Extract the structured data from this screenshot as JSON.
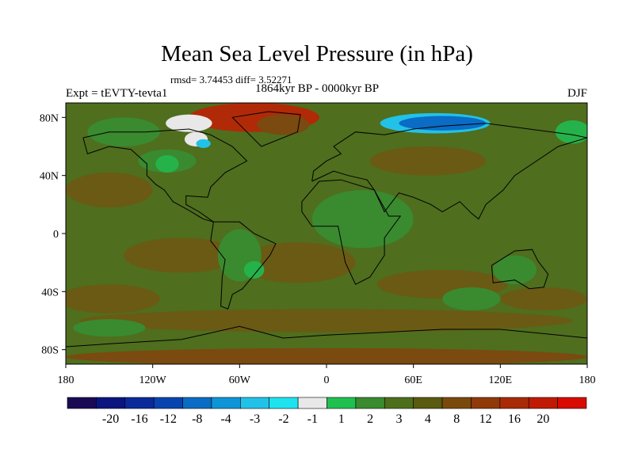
{
  "title": "Mean Sea Level Pressure (in hPa)",
  "stats": "rmsd= 3.74453 diff= 3.52271",
  "period": "1864kyr BP - 0000kyr BP",
  "experiment": "Expt = tEVTY-tevta1",
  "season": "DJF",
  "axes": {
    "y_ticks": [
      {
        "lat": 80,
        "label": "80N"
      },
      {
        "lat": 40,
        "label": "40N"
      },
      {
        "lat": 0,
        "label": "0"
      },
      {
        "lat": -40,
        "label": "40S"
      },
      {
        "lat": -80,
        "label": "80S"
      }
    ],
    "x_ticks": [
      {
        "lon": -180,
        "label": "180"
      },
      {
        "lon": -120,
        "label": "120W"
      },
      {
        "lon": -60,
        "label": "60W"
      },
      {
        "lon": 0,
        "label": "0"
      },
      {
        "lon": 60,
        "label": "60E"
      },
      {
        "lon": 120,
        "label": "120E"
      },
      {
        "lon": 180,
        "label": "180"
      }
    ],
    "lon_range": [
      -180,
      180
    ],
    "lat_range": [
      -90,
      90
    ]
  },
  "colorbar": {
    "colors": [
      "#1a0a55",
      "#0b1580",
      "#0a2a9c",
      "#0844b0",
      "#0a6cc4",
      "#0d95d8",
      "#22c2e8",
      "#1ee3ee",
      "#e8e8e8",
      "#20c050",
      "#3a8a30",
      "#4d6f1c",
      "#5a5a10",
      "#7a4a0c",
      "#903a08",
      "#a82a06",
      "#c01a04",
      "#d80a02"
    ],
    "labels": [
      "-20",
      "-16",
      "-12",
      "-8",
      "-4",
      "-3",
      "-2",
      "-1",
      "1",
      "2",
      "3",
      "4",
      "8",
      "12",
      "16",
      "20"
    ]
  },
  "colors": {
    "background_field": "#4f6e1e",
    "positive_low": "#3a8a30",
    "light_green": "#26b24a",
    "brownish": "#6a5a14",
    "brown_high": "#7a4a10",
    "red_high": "#b02a08",
    "blue_low": "#0a6cc4",
    "cyan_low": "#22c2e8"
  }
}
